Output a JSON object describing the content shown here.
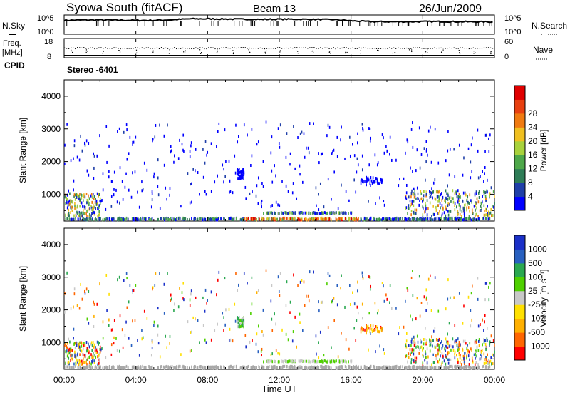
{
  "header": {
    "title": "Syowa South (fitACF)",
    "beam": "Beam 13",
    "date": "26/Jun/2009"
  },
  "left_labels": {
    "nsky": "N.Sky",
    "freq": "Freq.",
    "freq_unit": "[MHz]",
    "cpid": "CPID"
  },
  "right_labels": {
    "nsearch": "N.Search",
    "nave": "Nave"
  },
  "cpid_text": "Stereo -6401",
  "colors": {
    "axis": "#000000",
    "colorbar_power": [
      "#0000ff",
      "#1f3fa8",
      "#2e7d57",
      "#4ea84a",
      "#a8d23c",
      "#f0c020",
      "#f07a10",
      "#e84010",
      "#e00000"
    ],
    "colorbar_velocity": [
      "#ff0000",
      "#ff6600",
      "#ffb000",
      "#ffe000",
      "#c8c8c8",
      "#4fd000",
      "#2aa850",
      "#2860c0",
      "#1a30c8"
    ],
    "ground_scatter": "#a8a8a8"
  },
  "chart_data": [
    {
      "type": "line",
      "panel": "noise",
      "ylabel_left": "N.Sky",
      "ylabel_right": "N.Search",
      "left_ticks": [
        "10^5",
        "10^0"
      ],
      "right_ticks": [
        "10^5",
        "10^0"
      ],
      "x_range_hours": [
        0,
        24
      ],
      "grid": false,
      "series": [
        {
          "x": [
            0,
            1,
            2,
            3,
            4,
            5,
            6,
            7,
            8,
            9,
            10,
            11,
            12,
            13,
            14,
            15,
            16,
            17,
            18,
            19,
            20,
            21,
            22,
            23,
            24
          ],
          "y_fraction": [
            0.72,
            0.74,
            0.74,
            0.73,
            0.72,
            0.72,
            0.75,
            0.8,
            0.8,
            0.79,
            0.78,
            0.77,
            0.78,
            0.78,
            0.77,
            0.76,
            0.7,
            0.66,
            0.65,
            0.65,
            0.66,
            0.66,
            0.65,
            0.65,
            0.64
          ]
        }
      ]
    },
    {
      "type": "scatter",
      "panel": "frequency",
      "ylabel_left": "Freq. [MHz]",
      "ylabel_right": "Nave",
      "left_ticks": [
        "18",
        "8"
      ],
      "right_ticks": [
        "60",
        "0"
      ],
      "x_range_hours": [
        0,
        24
      ],
      "grid": false
    },
    {
      "type": "heatmap",
      "panel": "power",
      "ylabel": "Slant Range [km]",
      "yticks": [
        "1000",
        "2000",
        "3000",
        "4000"
      ],
      "ylim_km": [
        180,
        4500
      ],
      "x_range_hours": [
        0,
        24
      ],
      "colorbar_label": "Power [dB]",
      "colorbar_ticks": [
        "4",
        "8",
        "12",
        "16",
        "20",
        "24",
        "28"
      ],
      "grid": false
    },
    {
      "type": "heatmap",
      "panel": "velocity",
      "ylabel": "Slant Range [km]",
      "yticks": [
        "1000",
        "2000",
        "3000",
        "4000"
      ],
      "ylim_km": [
        180,
        4500
      ],
      "x_range_hours": [
        0,
        24
      ],
      "xticks": [
        "00:00",
        "04:00",
        "08:00",
        "12:00",
        "16:00",
        "20:00",
        "00:00"
      ],
      "xlabel": "Time UT",
      "colorbar_label": "Velocity [m s⁻¹]",
      "colorbar_ticks": [
        "1000",
        "500",
        "100",
        "25",
        "-25",
        "-100",
        "-500",
        "-1000"
      ],
      "grid": false
    }
  ]
}
